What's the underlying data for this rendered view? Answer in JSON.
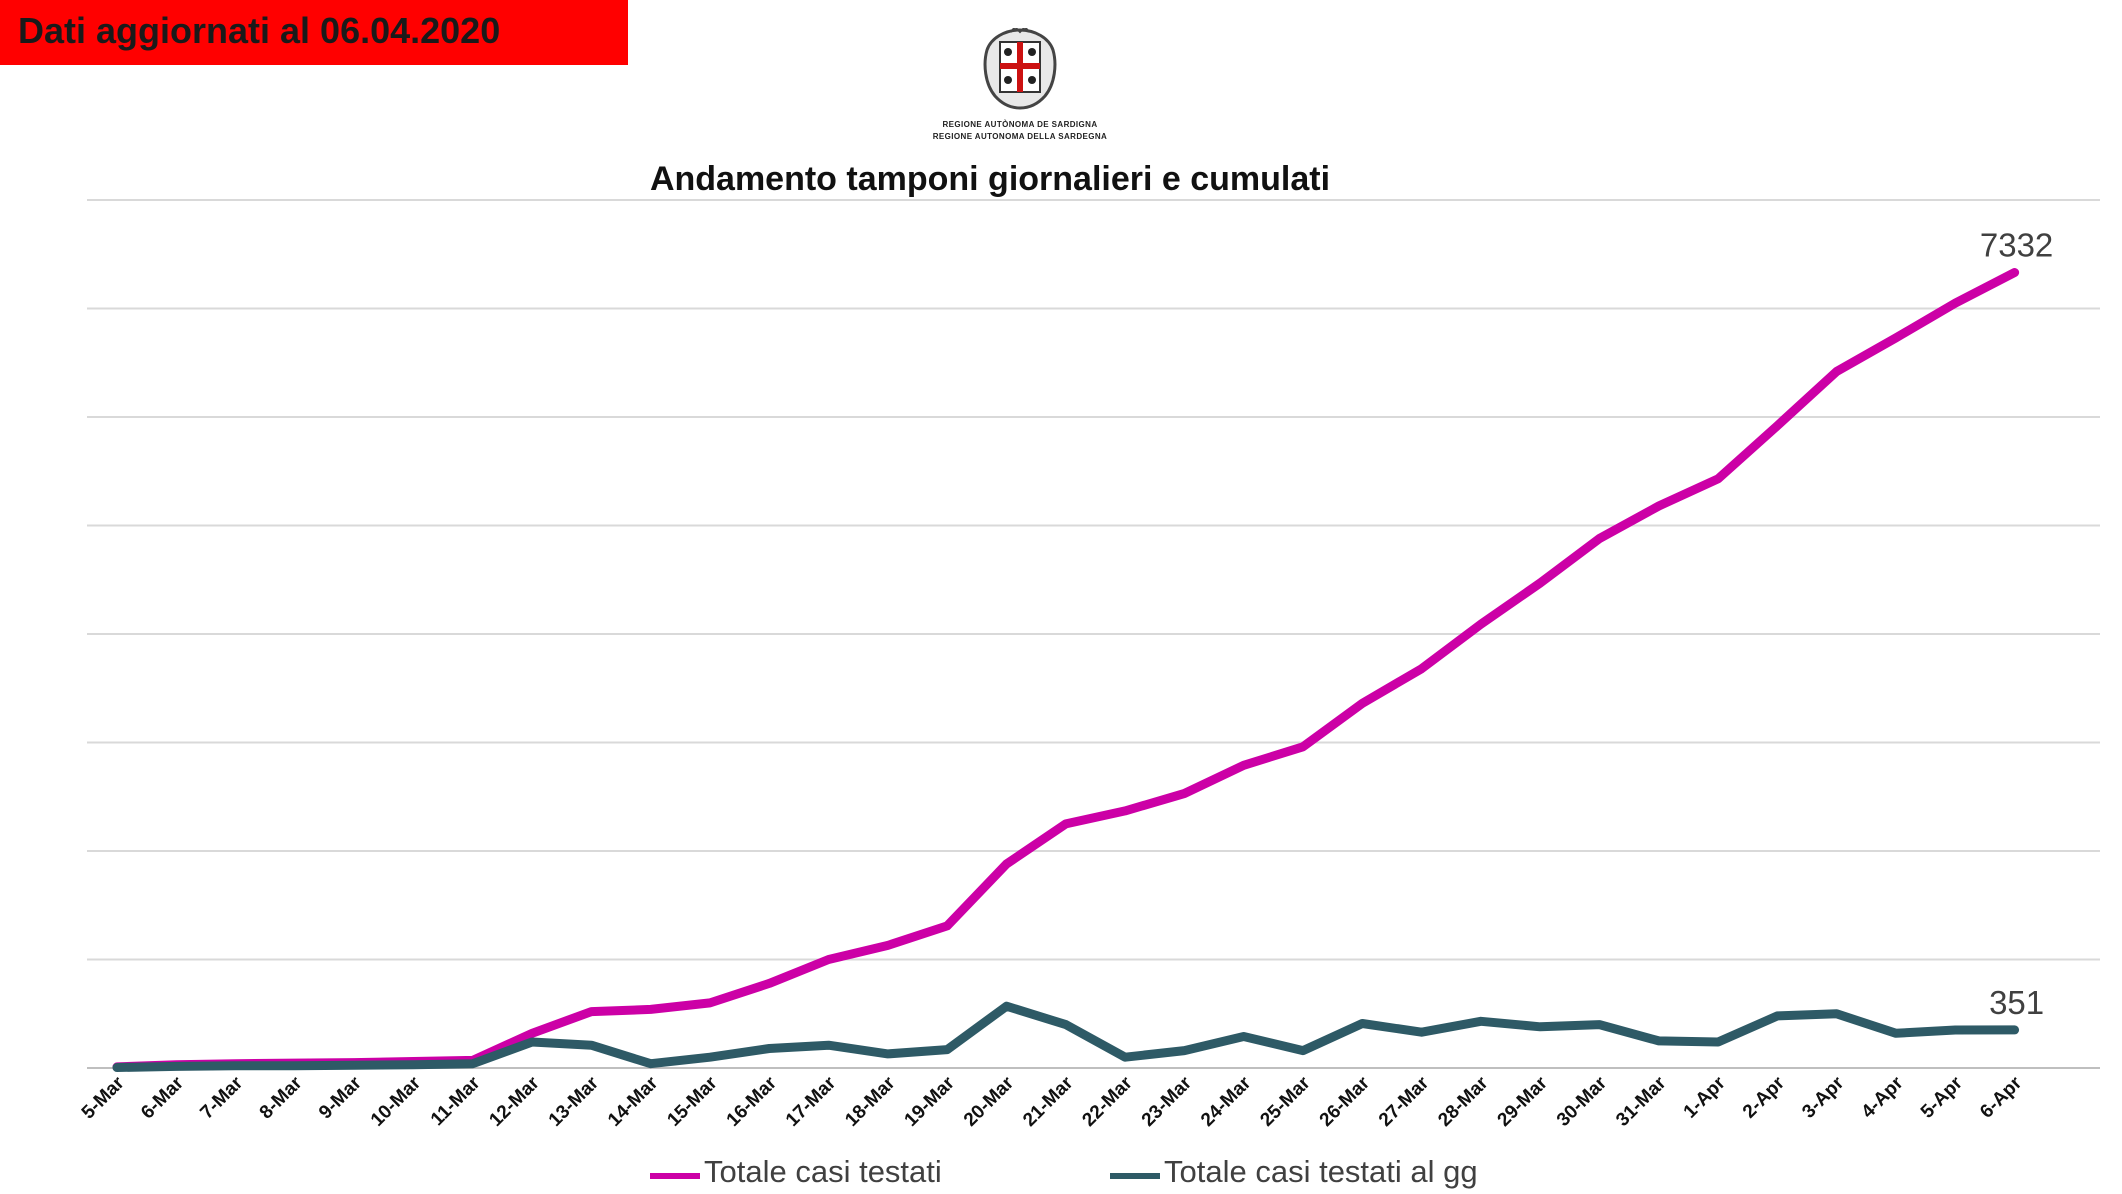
{
  "banner": {
    "text": "Dati aggiornati al 06.04.2020",
    "color": "#ff0000"
  },
  "logo": {
    "icon": "sardinia-coat-of-arms-icon",
    "line1": "REGIONE AUTÒNOMA DE SARDIGNA",
    "line2": "REGIONE AUTONOMA DELLA SARDEGNA"
  },
  "colors": {
    "cumulative": "#cc00a6",
    "daily": "#2e5a66",
    "grid": "#d9d9d9"
  },
  "chart_data": {
    "type": "line",
    "title": "Andamento tamponi giornalieri e cumulati",
    "xlabel": "",
    "ylabel": "",
    "ylim": [
      0,
      8000
    ],
    "grid": true,
    "legend_position": "bottom",
    "categories": [
      "5-Mar",
      "6-Mar",
      "7-Mar",
      "8-Mar",
      "9-Mar",
      "10-Mar",
      "11-Mar",
      "12-Mar",
      "13-Mar",
      "14-Mar",
      "15-Mar",
      "16-Mar",
      "17-Mar",
      "18-Mar",
      "19-Mar",
      "20-Mar",
      "21-Mar",
      "22-Mar",
      "23-Mar",
      "24-Mar",
      "25-Mar",
      "26-Mar",
      "27-Mar",
      "28-Mar",
      "29-Mar",
      "30-Mar",
      "31-Mar",
      "1-Apr",
      "2-Apr",
      "3-Apr",
      "4-Apr",
      "5-Apr",
      "6-Apr"
    ],
    "series": [
      {
        "name": "Totale casi testati",
        "values": [
          10,
          30,
          40,
          45,
          50,
          60,
          70,
          320,
          520,
          540,
          600,
          780,
          1000,
          1130,
          1310,
          1880,
          2250,
          2370,
          2530,
          2790,
          2960,
          3360,
          3680,
          4090,
          4470,
          4880,
          5180,
          5430,
          5920,
          6420,
          6730,
          7050,
          7332
        ]
      },
      {
        "name": "Totale casi testati al gg",
        "values": [
          5,
          15,
          20,
          20,
          25,
          30,
          40,
          240,
          210,
          40,
          100,
          180,
          210,
          130,
          170,
          570,
          400,
          100,
          160,
          290,
          160,
          410,
          330,
          430,
          380,
          400,
          250,
          240,
          480,
          500,
          320,
          350,
          351
        ]
      }
    ],
    "data_labels": {
      "Totale casi testati": "7332",
      "Totale casi testati al gg": "351"
    }
  }
}
